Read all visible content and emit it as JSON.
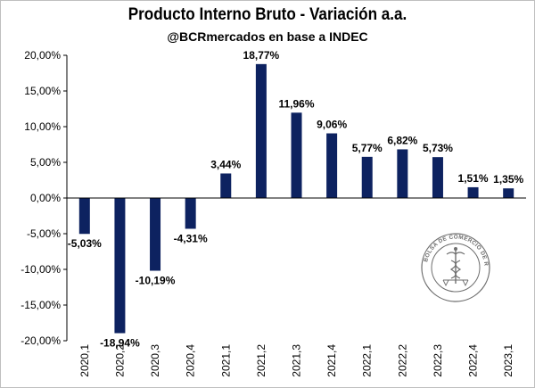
{
  "chart_data": {
    "type": "bar",
    "title": "Producto Interno Bruto - Variación a.a.",
    "subtitle": "@BCRmercados en base a INDEC",
    "categories": [
      "2020,1",
      "2020,2",
      "2020,3",
      "2020,4",
      "2021,1",
      "2021,2",
      "2021,3",
      "2021,4",
      "2022,1",
      "2022,2",
      "2022,3",
      "2022,4",
      "2023,1"
    ],
    "values": [
      -5.03,
      -18.94,
      -10.19,
      -4.31,
      3.44,
      18.77,
      11.96,
      9.06,
      5.77,
      6.82,
      5.73,
      1.51,
      1.35
    ],
    "value_labels": [
      "-5,03%",
      "-18,94%",
      "-10,19%",
      "-4,31%",
      "3,44%",
      "18,77%",
      "11,96%",
      "9,06%",
      "5,77%",
      "6,82%",
      "5,73%",
      "1,51%",
      "1,35%"
    ],
    "y_ticks": [
      20,
      15,
      10,
      5,
      0,
      -5,
      -10,
      -15,
      -20
    ],
    "y_tick_labels": [
      "20,00%",
      "15,00%",
      "10,00%",
      "5,00%",
      "0,00%",
      "-5,00%",
      "-10,00%",
      "-15,00%",
      "-20,00%"
    ],
    "ylim": [
      -20,
      20
    ],
    "xlabel": "",
    "ylabel": "",
    "grid": false,
    "bar_color": "#0d2260"
  },
  "watermark": {
    "text": "BOLSA DE COMERCIO DE ROSARIO"
  }
}
